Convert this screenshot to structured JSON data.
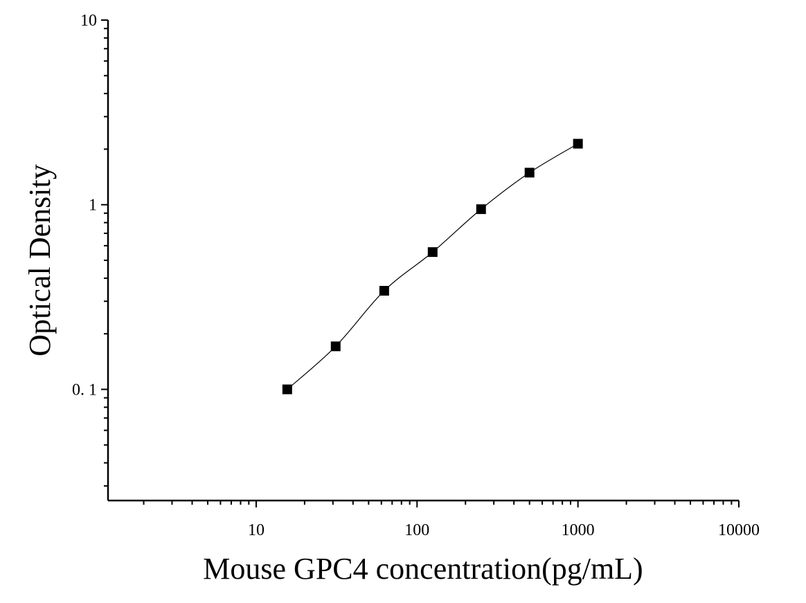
{
  "chart_data": {
    "type": "scatter",
    "title": "",
    "xlabel": "Mouse GPC4 concentration(pg/mL)",
    "ylabel": "Optical Density",
    "x_scale": "log",
    "y_scale": "log",
    "xlim": [
      1.2,
      10000
    ],
    "ylim": [
      0.025,
      10
    ],
    "x_ticks": [
      {
        "value": 10,
        "label": "10"
      },
      {
        "value": 100,
        "label": "100"
      },
      {
        "value": 1000,
        "label": "1000"
      },
      {
        "value": 10000,
        "label": "10000"
      }
    ],
    "y_ticks": [
      {
        "value": 0.1,
        "label": "0. 1"
      },
      {
        "value": 1,
        "label": "1"
      },
      {
        "value": 10,
        "label": "10"
      }
    ],
    "grid": false,
    "legend": "none",
    "series": [
      {
        "marker": "square",
        "fit_line": true,
        "x": [
          15.6,
          31.2,
          62.5,
          125,
          250,
          500,
          1000
        ],
        "y": [
          0.1,
          0.171,
          0.342,
          0.554,
          0.946,
          1.492,
          2.14
        ]
      }
    ]
  },
  "colors": {
    "axis": "#000000",
    "marker": "#000000",
    "line": "#000000",
    "background": "#ffffff"
  }
}
